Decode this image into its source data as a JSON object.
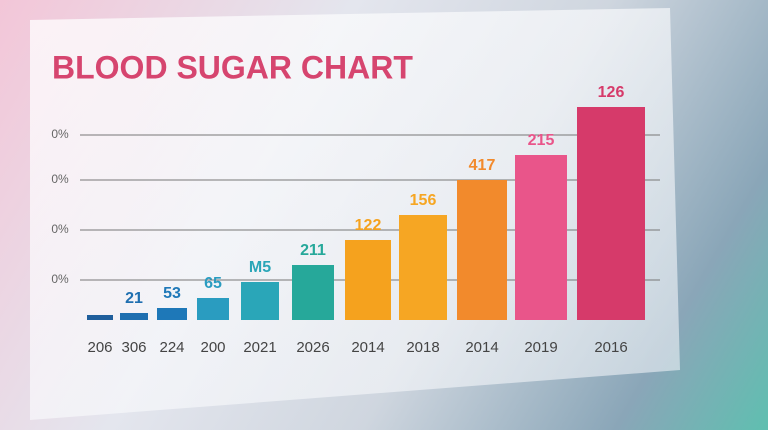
{
  "chart_data": {
    "type": "bar",
    "title": "BLOOD SUGAR CHART",
    "categories": [
      "206",
      "306",
      "224",
      "200",
      "2021",
      "2026",
      "2014",
      "2018",
      "2014",
      "2019",
      "2016"
    ],
    "values": [
      5,
      7,
      12,
      22,
      38,
      55,
      80,
      105,
      140,
      165,
      213
    ],
    "bar_labels": [
      null,
      "21",
      "53",
      "65",
      "M5",
      "211",
      "122",
      "156",
      "417",
      "215",
      "126"
    ],
    "colors": [
      "#1f5f9c",
      "#1f6fb0",
      "#1e78b8",
      "#2a9cc0",
      "#2aa6b8",
      "#26a89a",
      "#f5a21e",
      "#f6a623",
      "#f28a2c",
      "#e9558a",
      "#d63a6a"
    ],
    "ylim": [
      0,
      250
    ],
    "yticks": [
      {
        "value": 40,
        "label": "0%"
      },
      {
        "value": 90,
        "label": "0%"
      },
      {
        "value": 140,
        "label": "0%"
      },
      {
        "value": 185,
        "label": "0%"
      }
    ],
    "grid": true
  }
}
